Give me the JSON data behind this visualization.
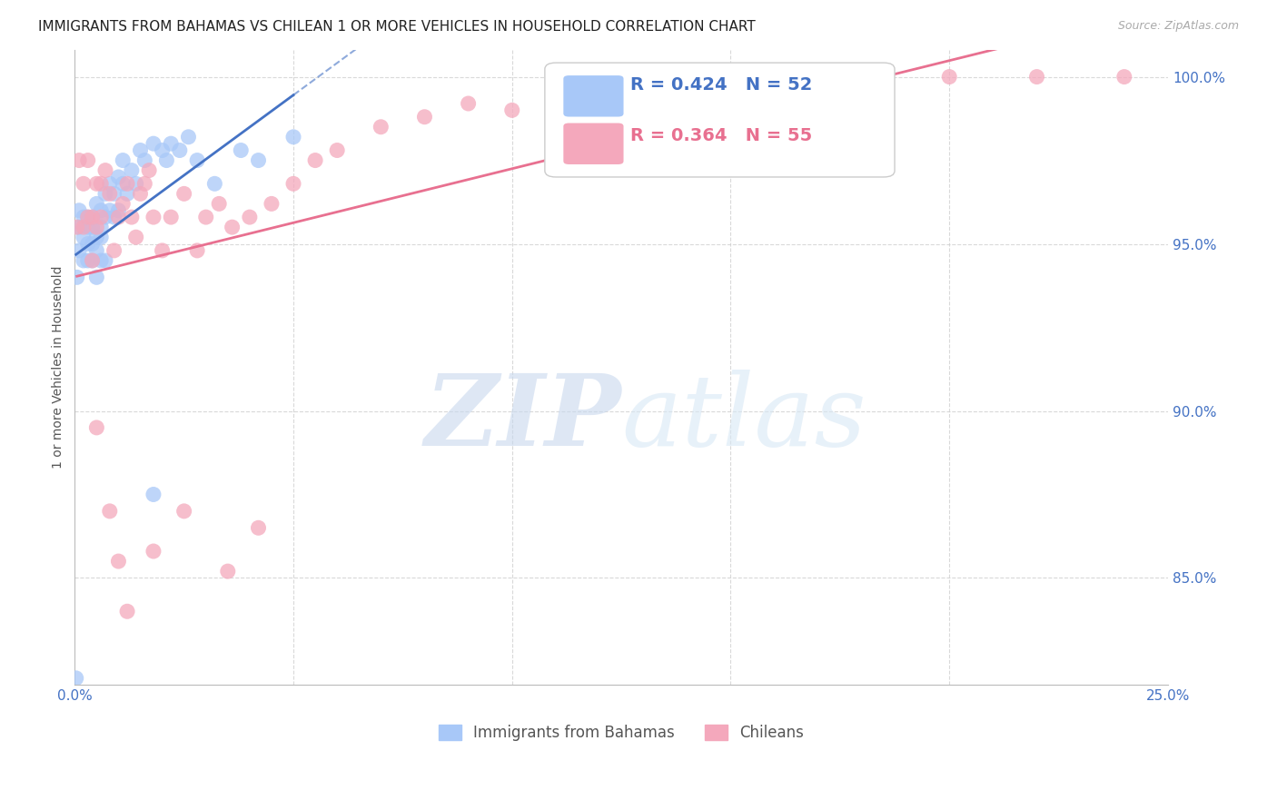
{
  "title": "IMMIGRANTS FROM BAHAMAS VS CHILEAN 1 OR MORE VEHICLES IN HOUSEHOLD CORRELATION CHART",
  "source_text": "Source: ZipAtlas.com",
  "ylabel": "1 or more Vehicles in Household",
  "x_min": 0.0,
  "x_max": 0.25,
  "y_min": 0.818,
  "y_max": 1.008,
  "yticks": [
    0.85,
    0.9,
    0.95,
    1.0
  ],
  "ytick_labels": [
    "85.0%",
    "90.0%",
    "95.0%",
    "100.0%"
  ],
  "xticks": [
    0.0,
    0.05,
    0.1,
    0.15,
    0.2,
    0.25
  ],
  "xtick_labels": [
    "0.0%",
    "",
    "",
    "",
    "",
    "25.0%"
  ],
  "legend_label_blue": "Immigrants from Bahamas",
  "legend_label_pink": "Chileans",
  "R_blue": 0.424,
  "N_blue": 52,
  "R_pink": 0.364,
  "N_pink": 55,
  "blue_color": "#a8c8f8",
  "pink_color": "#f4a8bc",
  "blue_line_color": "#4472c4",
  "pink_line_color": "#e87090",
  "axis_color": "#4472c4",
  "grid_color": "#d0d0d0",
  "background_color": "#ffffff",
  "blue_x": [
    0.0005,
    0.001,
    0.001,
    0.001,
    0.002,
    0.002,
    0.002,
    0.003,
    0.003,
    0.003,
    0.003,
    0.004,
    0.004,
    0.004,
    0.004,
    0.005,
    0.005,
    0.005,
    0.005,
    0.006,
    0.006,
    0.006,
    0.006,
    0.007,
    0.007,
    0.007,
    0.008,
    0.008,
    0.009,
    0.009,
    0.01,
    0.01,
    0.011,
    0.011,
    0.012,
    0.013,
    0.014,
    0.015,
    0.016,
    0.018,
    0.02,
    0.021,
    0.022,
    0.024,
    0.026,
    0.028,
    0.032,
    0.038,
    0.042,
    0.05,
    0.0003,
    0.018
  ],
  "blue_y": [
    0.94,
    0.96,
    0.955,
    0.948,
    0.958,
    0.952,
    0.945,
    0.958,
    0.955,
    0.95,
    0.945,
    0.955,
    0.95,
    0.958,
    0.945,
    0.952,
    0.948,
    0.962,
    0.94,
    0.96,
    0.955,
    0.952,
    0.945,
    0.965,
    0.958,
    0.945,
    0.968,
    0.96,
    0.965,
    0.958,
    0.97,
    0.96,
    0.968,
    0.975,
    0.965,
    0.972,
    0.968,
    0.978,
    0.975,
    0.98,
    0.978,
    0.975,
    0.98,
    0.978,
    0.982,
    0.975,
    0.968,
    0.978,
    0.975,
    0.982,
    0.82,
    0.875
  ],
  "pink_x": [
    0.0005,
    0.001,
    0.002,
    0.002,
    0.003,
    0.003,
    0.004,
    0.004,
    0.005,
    0.005,
    0.006,
    0.006,
    0.007,
    0.008,
    0.009,
    0.01,
    0.011,
    0.012,
    0.013,
    0.014,
    0.015,
    0.016,
    0.017,
    0.018,
    0.02,
    0.022,
    0.025,
    0.028,
    0.03,
    0.033,
    0.036,
    0.04,
    0.045,
    0.05,
    0.055,
    0.06,
    0.07,
    0.08,
    0.09,
    0.1,
    0.115,
    0.13,
    0.15,
    0.17,
    0.2,
    0.22,
    0.24,
    0.005,
    0.008,
    0.01,
    0.012,
    0.018,
    0.025,
    0.035,
    0.042
  ],
  "pink_y": [
    0.955,
    0.975,
    0.955,
    0.968,
    0.958,
    0.975,
    0.958,
    0.945,
    0.968,
    0.955,
    0.958,
    0.968,
    0.972,
    0.965,
    0.948,
    0.958,
    0.962,
    0.968,
    0.958,
    0.952,
    0.965,
    0.968,
    0.972,
    0.958,
    0.948,
    0.958,
    0.965,
    0.948,
    0.958,
    0.962,
    0.955,
    0.958,
    0.962,
    0.968,
    0.975,
    0.978,
    0.985,
    0.988,
    0.992,
    0.99,
    0.995,
    0.998,
    0.998,
    1.0,
    1.0,
    1.0,
    1.0,
    0.895,
    0.87,
    0.855,
    0.84,
    0.858,
    0.87,
    0.852,
    0.865
  ],
  "title_fontsize": 11,
  "axis_label_fontsize": 10,
  "tick_fontsize": 11,
  "legend_fontsize": 14,
  "source_fontsize": 9,
  "dot_size": 150
}
